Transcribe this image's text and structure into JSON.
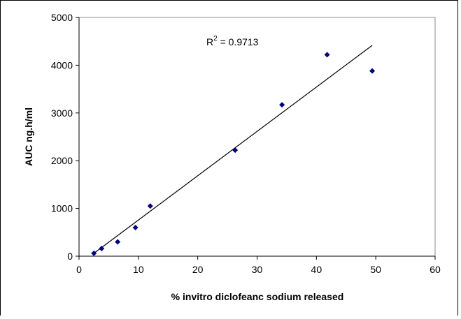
{
  "chart_data": {
    "type": "scatter",
    "x_label": "% invitro diclofeanc sodium released",
    "y_label": "AUC ng.h/ml",
    "annotation": {
      "base": "R",
      "sup": "2",
      "rest": " = 0.9713"
    },
    "series": [
      {
        "color": "#000080",
        "x": [
          2.5,
          3.8,
          6.5,
          9.5,
          12,
          26.3,
          34.2,
          41.8,
          49.4
        ],
        "values": [
          60,
          160,
          300,
          600,
          1050,
          2220,
          3170,
          4220,
          3880
        ]
      }
    ],
    "trendline": {
      "color": "#000000",
      "x": [
        2.5,
        49.4
      ],
      "values": [
        60,
        4415
      ]
    },
    "xlim": [
      0,
      60
    ],
    "xticks": [
      0,
      10,
      20,
      30,
      40,
      50,
      60
    ],
    "ylim": [
      0,
      5000
    ],
    "yticks": [
      0,
      1000,
      2000,
      3000,
      4000,
      5000
    ],
    "grid": false
  }
}
